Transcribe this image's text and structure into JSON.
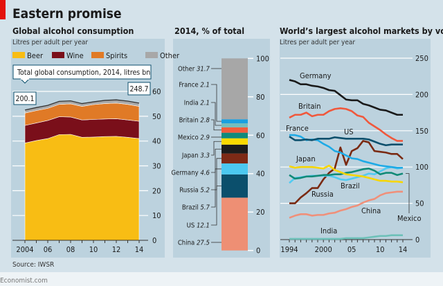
{
  "title": "Eastern promise",
  "source": "Source: IWSR",
  "footer": "Economist.com",
  "colors": {
    "background": "#d4e2ea",
    "panel": "#bcd2de",
    "accent": "#e3120b"
  },
  "chart_data": [
    {
      "type": "area",
      "title": "Global alcohol consumption",
      "subtitle": "Litres per adult per year",
      "stacked": true,
      "x": [
        2004,
        2005,
        2006,
        2007,
        2008,
        2009,
        2010,
        2011,
        2012,
        2013,
        2014
      ],
      "x_tick_labels": [
        "2004",
        "06",
        "08",
        "10",
        "12",
        "14"
      ],
      "y_ticks": [
        "0",
        "10",
        "20",
        "30",
        "40",
        "50",
        "60"
      ],
      "ylim": [
        0,
        60
      ],
      "grid": true,
      "legend_position": "top",
      "series": [
        {
          "name": "Beer",
          "color": "#f8bd14",
          "values": [
            39.2,
            40.2,
            41.0,
            42.6,
            42.7,
            41.5,
            41.6,
            41.8,
            41.9,
            41.5,
            41.0
          ]
        },
        {
          "name": "Wine",
          "color": "#7a0f1a",
          "values": [
            7.1,
            7.1,
            7.3,
            7.2,
            7.0,
            7.0,
            7.1,
            7.1,
            7.1,
            7.0,
            7.0
          ]
        },
        {
          "name": "Spirits",
          "color": "#e07a26",
          "values": [
            5.0,
            5.0,
            4.9,
            5.0,
            5.3,
            5.5,
            6.0,
            6.2,
            6.3,
            6.3,
            6.0
          ]
        },
        {
          "name": "Other",
          "color": "#a8a8a8",
          "values": [
            1.2,
            1.2,
            1.2,
            1.2,
            1.2,
            1.1,
            1.1,
            1.3,
            1.3,
            1.3,
            1.3
          ]
        }
      ],
      "callout": "Total global consumption, 2014, litres bn",
      "annotations": [
        {
          "year": 2004,
          "label": "200.1"
        },
        {
          "year": 2014,
          "label": "248.7"
        }
      ]
    },
    {
      "type": "bar",
      "title": "2014, % of total",
      "stacked": true,
      "ylim": [
        0,
        100
      ],
      "y_ticks": [
        "0",
        "20",
        "40",
        "60",
        "80",
        "100"
      ],
      "segments": [
        {
          "name": "China",
          "value": 27.5,
          "label": "27.5",
          "color": "#ee8f74"
        },
        {
          "name": "US",
          "value": 12.1,
          "label": "12.1",
          "color": "#0b4f6c"
        },
        {
          "name": "Brazil",
          "value": 5.7,
          "label": "5.7",
          "color": "#4cc8f0"
        },
        {
          "name": "Russia",
          "value": 5.2,
          "label": "5.2",
          "color": "#7d2a16"
        },
        {
          "name": "Germany",
          "value": 4.6,
          "label": "4.6",
          "color": "#1c1c1c"
        },
        {
          "name": "Japan",
          "value": 3.3,
          "label": "3.3",
          "color": "#fbd900"
        },
        {
          "name": "Mexico",
          "value": 2.9,
          "label": "2.9",
          "color": "#0f8a7c"
        },
        {
          "name": "Britain",
          "value": 2.8,
          "label": "2.8",
          "color": "#f25c3b"
        },
        {
          "name": "India",
          "value": 2.1,
          "label": "2.1",
          "color": "#74bdbd"
        },
        {
          "name": "France",
          "value": 2.1,
          "label": "2.1",
          "color": "#1a9fe0"
        },
        {
          "name": "Other",
          "value": 31.7,
          "label": "31.7",
          "color": "#a7a7a7"
        }
      ]
    },
    {
      "type": "line",
      "title": "World’s largest alcohol markets by volume",
      "subtitle": "Litres per adult per year",
      "x": [
        1994,
        1995,
        1996,
        1997,
        1998,
        1999,
        2000,
        2001,
        2002,
        2003,
        2004,
        2005,
        2006,
        2007,
        2008,
        2009,
        2010,
        2011,
        2012,
        2013,
        2014
      ],
      "x_tick_labels": [
        "1994",
        "2000",
        "05",
        "10",
        "14"
      ],
      "y_ticks": [
        "0",
        "50",
        "100",
        "150",
        "200",
        "250"
      ],
      "ylim": [
        0,
        250
      ],
      "grid": true,
      "series": [
        {
          "name": "Germany",
          "color": "#1a1a1a",
          "values": [
            220,
            218,
            214,
            214,
            212,
            211,
            209,
            206,
            205,
            199,
            193,
            192,
            192,
            187,
            185,
            182,
            179,
            178,
            175,
            172,
            172
          ]
        },
        {
          "name": "Britain",
          "color": "#f0583c",
          "values": [
            168,
            172,
            172,
            175,
            170,
            172,
            172,
            177,
            180,
            181,
            180,
            177,
            171,
            169,
            161,
            156,
            151,
            145,
            140,
            136,
            136
          ]
        },
        {
          "name": "US",
          "color": "#0b4f6c",
          "values": [
            142,
            137,
            137,
            138,
            137,
            139,
            139,
            139,
            141,
            140,
            139,
            139,
            139,
            139,
            138,
            135,
            132,
            130,
            131,
            131,
            131
          ]
        },
        {
          "name": "France",
          "color": "#1eaae6",
          "values": [
            144,
            144,
            142,
            137,
            138,
            137,
            132,
            128,
            122,
            120,
            116,
            112,
            111,
            108,
            106,
            104,
            102,
            101,
            100,
            99,
            99
          ]
        },
        {
          "name": "Japan",
          "color": "#f7d600",
          "values": [
            101,
            99,
            100,
            100,
            100,
            99,
            98,
            102,
            96,
            93,
            90,
            89,
            88,
            87,
            85,
            83,
            81,
            81,
            80,
            80,
            79
          ]
        },
        {
          "name": "Brazil",
          "color": "#52cbf2",
          "values": [
            78,
            85,
            86,
            87,
            88,
            88,
            88,
            88,
            86,
            83,
            82,
            84,
            86,
            88,
            91,
            90,
            94,
            98,
            100,
            98,
            99
          ]
        },
        {
          "name": "Mexico",
          "color": "#128a78",
          "values": [
            89,
            84,
            85,
            87,
            87,
            88,
            89,
            89,
            90,
            90,
            92,
            93,
            95,
            97,
            98,
            95,
            90,
            92,
            92,
            89,
            91
          ]
        },
        {
          "name": "Russia",
          "color": "#7a2a12",
          "values": [
            50,
            50,
            58,
            64,
            71,
            71,
            83,
            92,
            98,
            127,
            103,
            122,
            126,
            136,
            134,
            122,
            121,
            120,
            118,
            118,
            111
          ]
        },
        {
          "name": "China",
          "color": "#f0907a",
          "values": [
            30,
            33,
            35,
            35,
            33,
            34,
            34,
            36,
            37,
            40,
            42,
            45,
            47,
            51,
            54,
            56,
            61,
            64,
            65,
            66,
            66
          ]
        },
        {
          "name": "India",
          "color": "#6dc0b8",
          "values": [
            1,
            1,
            1,
            1,
            1,
            1,
            1,
            1,
            1,
            1,
            2,
            2,
            2,
            2,
            3,
            4,
            5,
            5,
            6,
            6,
            6
          ]
        }
      ]
    }
  ]
}
